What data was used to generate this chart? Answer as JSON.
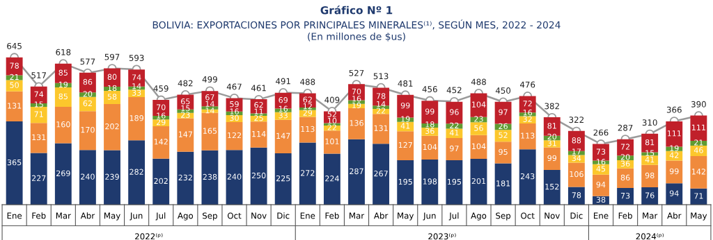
{
  "chart_data": {
    "type": "bar",
    "stacked": true,
    "title": "Gráfico Nº 1",
    "subtitle": "BOLIVIA: EXPORTACIONES POR PRINCIPALES MINERALES⁽¹⁾, SEGÚN MES, 2022 - 2024\n(En millones de $us)",
    "categories": [
      "Ene",
      "Feb",
      "Mar",
      "Abr",
      "May",
      "Jun",
      "Jul",
      "Ago",
      "Sep",
      "Oct",
      "Nov",
      "Dic",
      "Ene",
      "Feb",
      "Mar",
      "Abr",
      "May",
      "Jun",
      "Jul",
      "Ago",
      "Sep",
      "Oct",
      "Nov",
      "Dic",
      "Ene",
      "Feb",
      "Mar",
      "Abr",
      "May"
    ],
    "annotations": [
      "2022⁽ᵖ⁾",
      "2023⁽ᵖ⁾",
      "2024⁽ᵖ⁾"
    ],
    "data_labels": true,
    "legend": false,
    "grid": false,
    "series": [
      {
        "color": "#1f3a6e",
        "values": [
          365,
          227,
          269,
          240,
          239,
          282,
          202,
          232,
          238,
          240,
          250,
          225,
          272,
          224,
          287,
          267,
          195,
          198,
          195,
          201,
          181,
          243,
          152,
          78,
          38,
          73,
          76,
          94,
          71
        ]
      },
      {
        "color": "#f08a3c",
        "values": [
          131,
          131,
          160,
          170,
          202,
          189,
          142,
          147,
          165,
          122,
          114,
          147,
          113,
          101,
          136,
          131,
          127,
          104,
          97,
          104,
          95,
          113,
          99,
          106,
          94,
          86,
          98,
          99,
          142
        ]
      },
      {
        "color": "#fcc72c",
        "values": [
          50,
          71,
          85,
          62,
          58,
          33,
          29,
          23,
          14,
          30,
          25,
          33,
          29,
          22,
          19,
          22,
          41,
          36,
          41,
          56,
          52,
          32,
          31,
          34,
          45,
          36,
          41,
          42,
          46
        ]
      },
      {
        "color": "#5f9a32",
        "values": [
          21,
          15,
          19,
          20,
          18,
          14,
          16,
          15,
          14,
          16,
          11,
          16,
          12,
          10,
          16,
          14,
          19,
          18,
          22,
          23,
          26,
          16,
          20,
          17,
          16,
          20,
          15,
          19,
          21
        ]
      },
      {
        "color": "#c0202a",
        "values": [
          78,
          74,
          85,
          86,
          80,
          74,
          70,
          65,
          67,
          59,
          62,
          69,
          62,
          52,
          70,
          78,
          99,
          99,
          96,
          104,
          97,
          72,
          81,
          88,
          73,
          72,
          81,
          111,
          111
        ]
      },
      {
        "type": "line",
        "color": "#9a9a9a",
        "marker": "circle",
        "values": [
          645,
          517,
          618,
          577,
          597,
          593,
          459,
          482,
          499,
          467,
          461,
          491,
          488,
          409,
          527,
          513,
          481,
          456,
          452,
          488,
          450,
          476,
          382,
          322,
          266,
          287,
          310,
          366,
          390
        ]
      }
    ]
  }
}
